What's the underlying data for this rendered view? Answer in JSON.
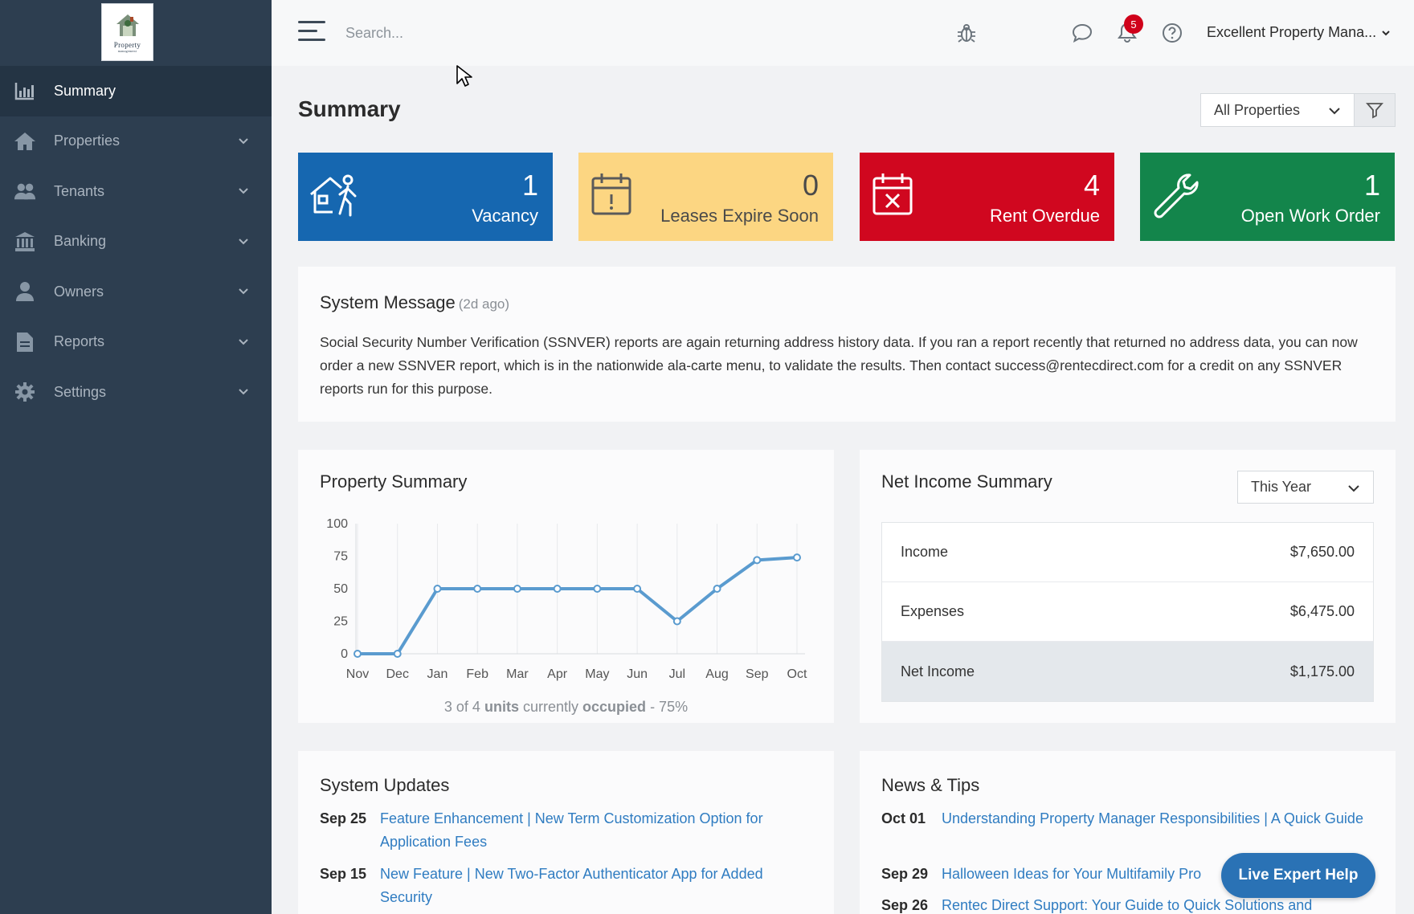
{
  "logo": {
    "line1": "Property",
    "line2": "management"
  },
  "sidebar": {
    "items": [
      {
        "label": "Summary",
        "icon": "bar-chart-icon"
      },
      {
        "label": "Properties",
        "icon": "house-icon"
      },
      {
        "label": "Tenants",
        "icon": "users-icon"
      },
      {
        "label": "Banking",
        "icon": "bank-icon"
      },
      {
        "label": "Owners",
        "icon": "user-icon"
      },
      {
        "label": "Reports",
        "icon": "document-icon"
      },
      {
        "label": "Settings",
        "icon": "gear-icon"
      }
    ]
  },
  "topbar": {
    "search_placeholder": "Search...",
    "notification_count": "5",
    "account_name": "Excellent Property Mana..."
  },
  "page": {
    "title": "Summary",
    "property_filter": "All Properties"
  },
  "stats": {
    "vacancy": {
      "value": "1",
      "label": "Vacancy"
    },
    "leases": {
      "value": "0",
      "label": "Leases Expire Soon"
    },
    "overdue": {
      "value": "4",
      "label": "Rent Overdue"
    },
    "workorder": {
      "value": "1",
      "label": "Open Work Order"
    }
  },
  "colors": {
    "blue": "#1667b0",
    "yellow": "#fcd682",
    "red": "#d0071f",
    "green": "#13854b",
    "link": "#2f7cc1",
    "line": "#5a9bcf"
  },
  "system_message": {
    "title": "System Message",
    "ago": "(2d ago)",
    "body": "Social Security Number Verification (SSNVER) reports are again returning address history data. If you ran a report recently that returned no address data, you can now order a new SSNVER report, which is in the nationwide ala-carte menu, to validate the results. Then contact success@rentecdirect.com for a credit on any SSNVER reports run for this purpose."
  },
  "property_summary": {
    "title": "Property Summary",
    "occupied_prefix": "3 of 4",
    "occupied_units": "units",
    "occupied_mid": "currently",
    "occupied_word": "occupied",
    "occupied_suffix": "- 75%"
  },
  "chart_data": {
    "type": "line",
    "categories": [
      "Nov",
      "Dec",
      "Jan",
      "Feb",
      "Mar",
      "Apr",
      "May",
      "Jun",
      "Jul",
      "Aug",
      "Sep",
      "Oct"
    ],
    "values": [
      0,
      0,
      50,
      50,
      50,
      50,
      50,
      50,
      25,
      50,
      72,
      74
    ],
    "yticks": [
      "0",
      "25",
      "50",
      "75",
      "100"
    ],
    "ylim": [
      0,
      100
    ],
    "grid": true
  },
  "net_income": {
    "title": "Net Income Summary",
    "period": "This Year",
    "rows": [
      {
        "label": "Income",
        "amount": "$7,650.00"
      },
      {
        "label": "Expenses",
        "amount": "$6,475.00"
      },
      {
        "label": "Net Income",
        "amount": "$1,175.00"
      }
    ]
  },
  "system_updates": {
    "title": "System Updates",
    "items": [
      {
        "date": "Sep 25",
        "text": "Feature Enhancement | New Term Customization Option for Application Fees"
      },
      {
        "date": "Sep 15",
        "text": "New Feature | New Two-Factor Authenticator App for Added Security"
      }
    ]
  },
  "news_tips": {
    "title": "News & Tips",
    "items": [
      {
        "date": "Oct 01",
        "text": "Understanding Property Manager Responsibilities | A Quick Guide"
      },
      {
        "date": "Sep 29",
        "text": "Halloween Ideas for Your Multifamily Pro"
      },
      {
        "date": "Sep 26",
        "text": "Rentec Direct Support: Your Guide to Quick Solutions and"
      }
    ]
  },
  "live_help": "Live Expert Help"
}
